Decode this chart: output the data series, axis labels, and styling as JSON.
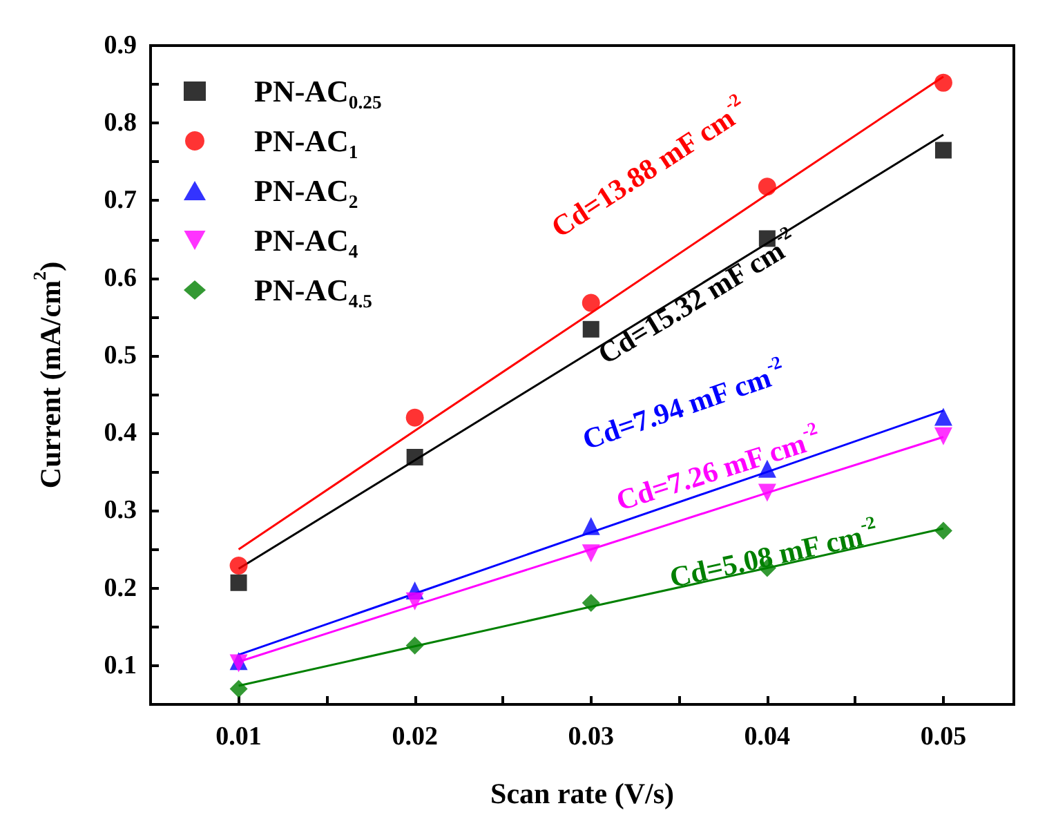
{
  "chart_data": {
    "type": "scatter",
    "xlabel": "Scan rate (V/s)",
    "ylabel": "Current (mA/cm$^{2}$)",
    "x": [
      0.01,
      0.02,
      0.03,
      0.04,
      0.05
    ],
    "series": [
      {
        "name": "PN-AC$_{0.25}$",
        "color": "#000000",
        "marker": "square",
        "values": [
          0.207,
          0.369,
          0.534,
          0.651,
          0.765
        ]
      },
      {
        "name": "PN-AC$_{1}$",
        "color": "#ff0000",
        "marker": "circle",
        "values": [
          0.229,
          0.42,
          0.568,
          0.718,
          0.852
        ]
      },
      {
        "name": "PN-AC$_{2}$",
        "color": "#0000ff",
        "marker": "triangle",
        "values": [
          0.106,
          0.197,
          0.28,
          0.354,
          0.421
        ]
      },
      {
        "name": "PN-AC$_{4}$",
        "color": "#ff00ff",
        "marker": "triangle-down",
        "values": [
          0.103,
          0.183,
          0.245,
          0.323,
          0.396
        ]
      },
      {
        "name": "PN-AC$_{4.5}$",
        "color": "#008000",
        "marker": "diamond",
        "values": [
          0.07,
          0.126,
          0.181,
          0.226,
          0.274
        ]
      },
      {
        "type": "line",
        "color": "#000000",
        "marker": "none",
        "values": [
          0.225,
          0.365,
          0.505,
          0.645,
          0.785
        ]
      },
      {
        "type": "line",
        "color": "#ff0000",
        "marker": "none",
        "values": [
          0.25,
          0.403,
          0.555,
          0.708,
          0.86
        ]
      },
      {
        "type": "line",
        "color": "#0000ff",
        "marker": "none",
        "values": [
          0.114,
          0.193,
          0.272,
          0.35,
          0.429
        ]
      },
      {
        "type": "line",
        "color": "#ff00ff",
        "marker": "none",
        "values": [
          0.105,
          0.178,
          0.25,
          0.323,
          0.395
        ]
      },
      {
        "type": "line",
        "color": "#008000",
        "marker": "none",
        "values": [
          0.074,
          0.125,
          0.176,
          0.226,
          0.277
        ]
      }
    ],
    "annotations": [
      "Cd=13.88 mF cm$^{-2}$",
      "Cd=15.32 mF cm$^{-2}$",
      "Cd=7.94 mF cm$^{-2}$",
      "Cd=7.26 mF cm$^{-2}$",
      "Cd=5.08 mF cm$^{-2}$"
    ],
    "xlim": [
      0.005,
      0.054
    ],
    "xticks": [
      {
        "value": 0.005,
        "label": null
      },
      0.01,
      {
        "value": 0.015,
        "label": null
      },
      0.02,
      {
        "value": 0.025,
        "label": null
      },
      0.03,
      {
        "value": 0.035,
        "label": null
      },
      0.04,
      {
        "value": 0.045,
        "label": null
      },
      0.05
    ],
    "ylim": [
      0.05,
      0.9
    ],
    "yticks": [
      {
        "value": 0.05,
        "label": null
      },
      0.1,
      {
        "value": 0.15,
        "label": null
      },
      0.2,
      {
        "value": 0.25,
        "label": null
      },
      0.3,
      {
        "value": 0.35,
        "label": null
      },
      0.4,
      {
        "value": 0.45,
        "label": null
      },
      0.5,
      {
        "value": 0.55,
        "label": null
      },
      0.6,
      {
        "value": 0.65,
        "label": null
      },
      0.7,
      {
        "value": 0.75,
        "label": null
      },
      0.8,
      {
        "value": 0.85,
        "label": null
      },
      0.9
    ],
    "grid": false,
    "legend": "top left"
  }
}
